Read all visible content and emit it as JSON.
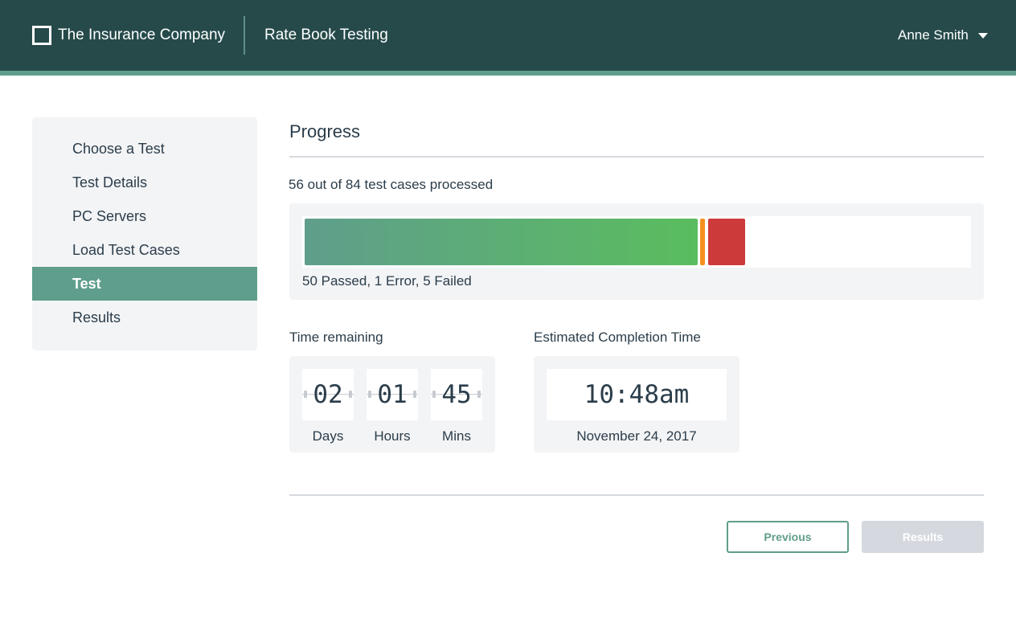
{
  "header": {
    "brand": "The Insurance Company",
    "app_title": "Rate Book Testing",
    "user_name": "Anne Smith",
    "background_color": "#264a4a",
    "accent_color": "#5f9e8c",
    "logo_icon": "square-outline-icon",
    "user_menu_icon": "caret-down-icon"
  },
  "sidebar": {
    "items": [
      {
        "label": "Choose a Test",
        "active": false
      },
      {
        "label": "Test Details",
        "active": false
      },
      {
        "label": "PC Servers",
        "active": false
      },
      {
        "label": "Load Test Cases",
        "active": false
      },
      {
        "label": "Test",
        "active": true
      },
      {
        "label": "Results",
        "active": false
      }
    ]
  },
  "progress": {
    "title": "Progress",
    "caption": "56 out of 84 test cases processed",
    "processed": 56,
    "total": 84,
    "passed": 50,
    "errors": 1,
    "failed": 5,
    "legend": "50 Passed, 1 Error, 5 Failed",
    "colors": {
      "passed": "#5abd5e",
      "error": "#f5901e",
      "failed": "#cc3a3a"
    }
  },
  "time_remaining": {
    "label": "Time remaining",
    "units": [
      {
        "value": "02",
        "label": "Days"
      },
      {
        "value": "01",
        "label": "Hours"
      },
      {
        "value": "45",
        "label": "Mins"
      }
    ]
  },
  "completion": {
    "label": "Estimated Completion Time",
    "time": "10:48am",
    "date": "November 24, 2017"
  },
  "actions": {
    "previous_label": "Previous",
    "results_label": "Results",
    "results_disabled": true
  }
}
